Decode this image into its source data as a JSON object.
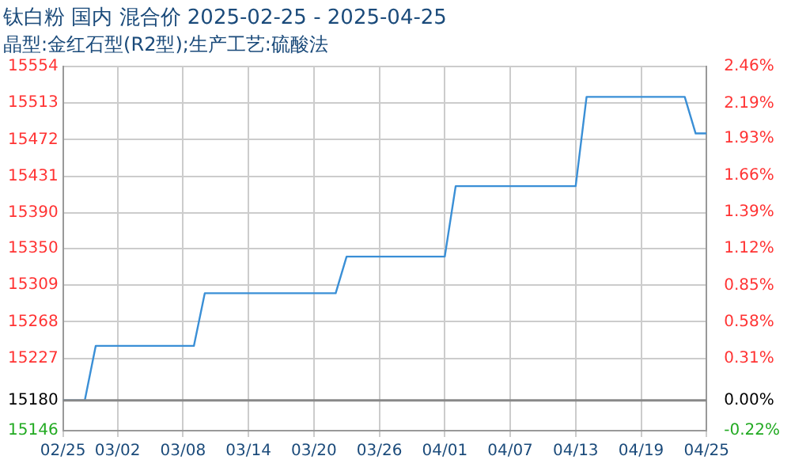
{
  "chart_data": {
    "type": "line",
    "title": "钛白粉 国内 混合价 2025-02-25 - 2025-04-25",
    "subtitle": "晶型:金红石型(R2型);生产工艺:硫酸法",
    "x": [
      "2025-02-25",
      "2025-02-27",
      "2025-02-28",
      "2025-03-09",
      "2025-03-10",
      "2025-03-22",
      "2025-03-23",
      "2025-04-01",
      "2025-04-02",
      "2025-04-13",
      "2025-04-14",
      "2025-04-23",
      "2025-04-24",
      "2025-04-25"
    ],
    "series": [
      {
        "color": "#3a8fd6",
        "values": [
          15180,
          15180,
          15241,
          15241,
          15300,
          15300,
          15341,
          15341,
          15420,
          15420,
          15520,
          15520,
          15479,
          15479
        ]
      }
    ],
    "xlim": [
      "2025-02-25",
      "2025-04-25"
    ],
    "xticks": [
      {
        "value": "2025-02-25",
        "label": "02/25"
      },
      {
        "value": "2025-03-02",
        "label": "03/02"
      },
      {
        "value": "2025-03-08",
        "label": "03/08"
      },
      {
        "value": "2025-03-14",
        "label": "03/14"
      },
      {
        "value": "2025-03-20",
        "label": "03/20"
      },
      {
        "value": "2025-03-26",
        "label": "03/26"
      },
      {
        "value": "2025-04-01",
        "label": "04/01"
      },
      {
        "value": "2025-04-07",
        "label": "04/07"
      },
      {
        "value": "2025-04-13",
        "label": "04/13"
      },
      {
        "value": "2025-04-19",
        "label": "04/19"
      },
      {
        "value": "2025-04-25",
        "label": "04/25"
      }
    ],
    "ylim": [
      15146,
      15554
    ],
    "yticks": [
      15146,
      15180,
      15227,
      15268,
      15309,
      15350,
      15390,
      15431,
      15472,
      15513,
      15554
    ],
    "y2lim": [
      -0.22,
      2.46
    ],
    "y2ticks": [
      {
        "value": -0.22,
        "label": "-0.22%"
      },
      {
        "value": 0,
        "label": "0.00%"
      },
      {
        "value": 0.31,
        "label": "0.31%"
      },
      {
        "value": 0.58,
        "label": "0.58%"
      },
      {
        "value": 0.85,
        "label": "0.85%"
      },
      {
        "value": 1.12,
        "label": "1.12%"
      },
      {
        "value": 1.39,
        "label": "1.39%"
      },
      {
        "value": 1.66,
        "label": "1.66%"
      },
      {
        "value": 1.93,
        "label": "1.93%"
      },
      {
        "value": 2.19,
        "label": "2.19%"
      },
      {
        "value": 2.46,
        "label": "2.46%"
      }
    ],
    "ref_lines": [
      {
        "axis": "y",
        "value": 15180,
        "color": "#888888",
        "line_style": "solid"
      }
    ],
    "grid": true,
    "marker": "none",
    "line_style": "solid"
  }
}
